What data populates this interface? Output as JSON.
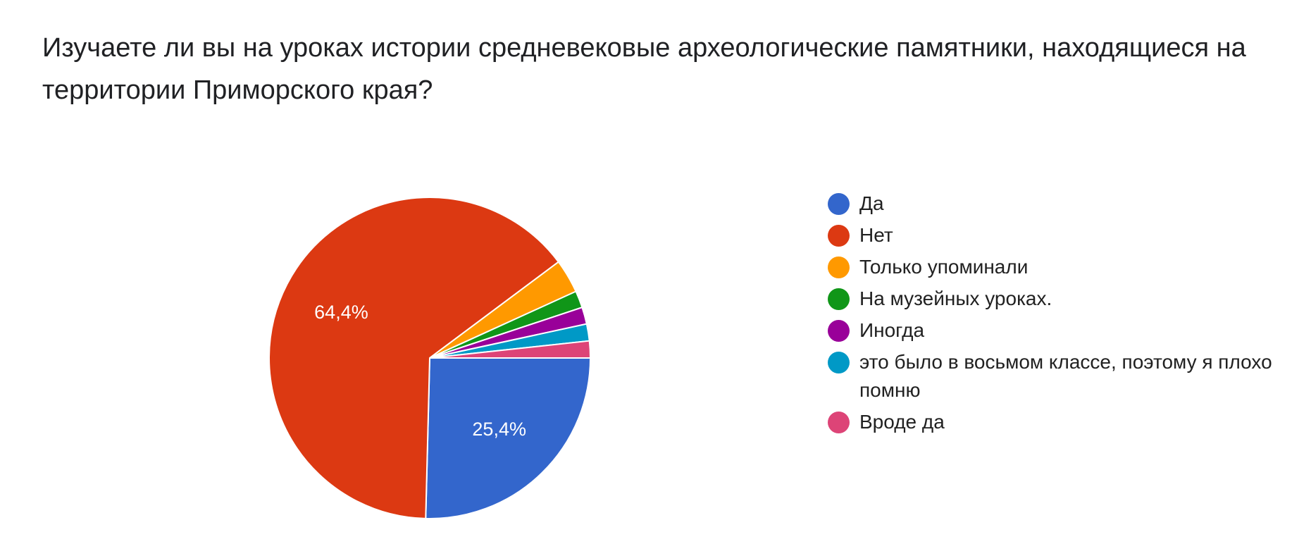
{
  "chart_data": {
    "type": "pie",
    "title": "Изучаете ли вы на уроках истории средневековые археологические памятники, находящиеся на территории Приморского края?",
    "start_angle_deg": 90,
    "direction": "clockwise",
    "legend_position": "right",
    "slices": [
      {
        "label": "Да",
        "value": 25.4,
        "color": "#3366CC",
        "data_label": "25,4%"
      },
      {
        "label": "Нет",
        "value": 64.4,
        "color": "#DC3912",
        "data_label": "64,4%"
      },
      {
        "label": "Только упоминали",
        "value": 3.4,
        "color": "#FF9900",
        "data_label": ""
      },
      {
        "label": "На музейных уроках.",
        "value": 1.7,
        "color": "#109618",
        "data_label": ""
      },
      {
        "label": "Иногда",
        "value": 1.7,
        "color": "#990099",
        "data_label": ""
      },
      {
        "label": "это было в восьмом классе, поэтому я плохо помню",
        "value": 1.7,
        "color": "#0099C6",
        "data_label": ""
      },
      {
        "label": "Вроде да",
        "value": 1.7,
        "color": "#DD4477",
        "data_label": ""
      }
    ]
  }
}
